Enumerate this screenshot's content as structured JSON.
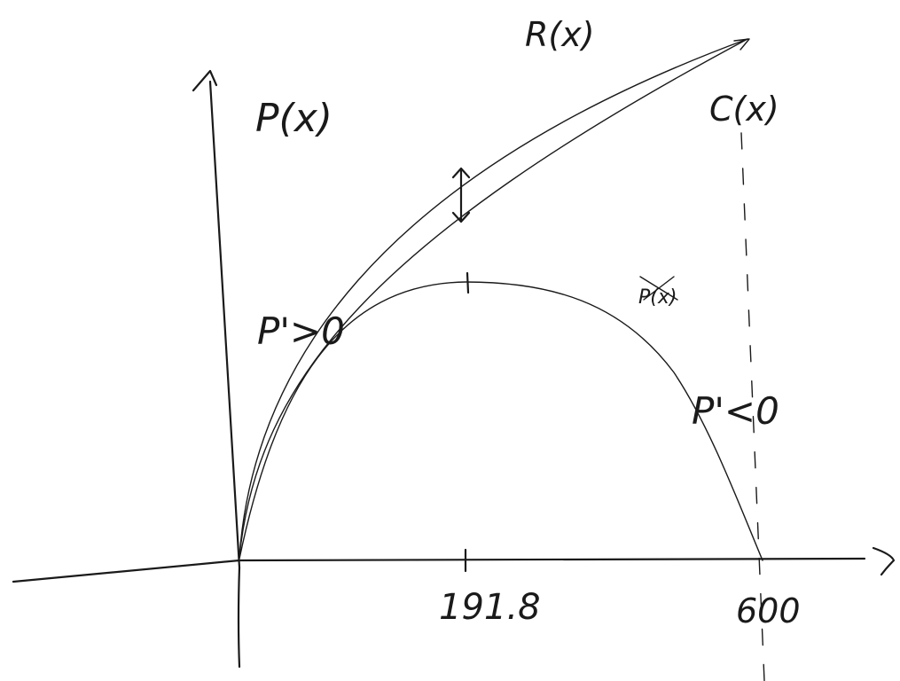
{
  "labels": {
    "y_axis": "P(x)",
    "revenue_curve": "R(x)",
    "cost_curve": "C(x)",
    "profit_curve": "P(x)",
    "increasing_note": "P'>0",
    "decreasing_note": "P'<0",
    "max_tick": "191.8",
    "end_tick": "600"
  }
}
